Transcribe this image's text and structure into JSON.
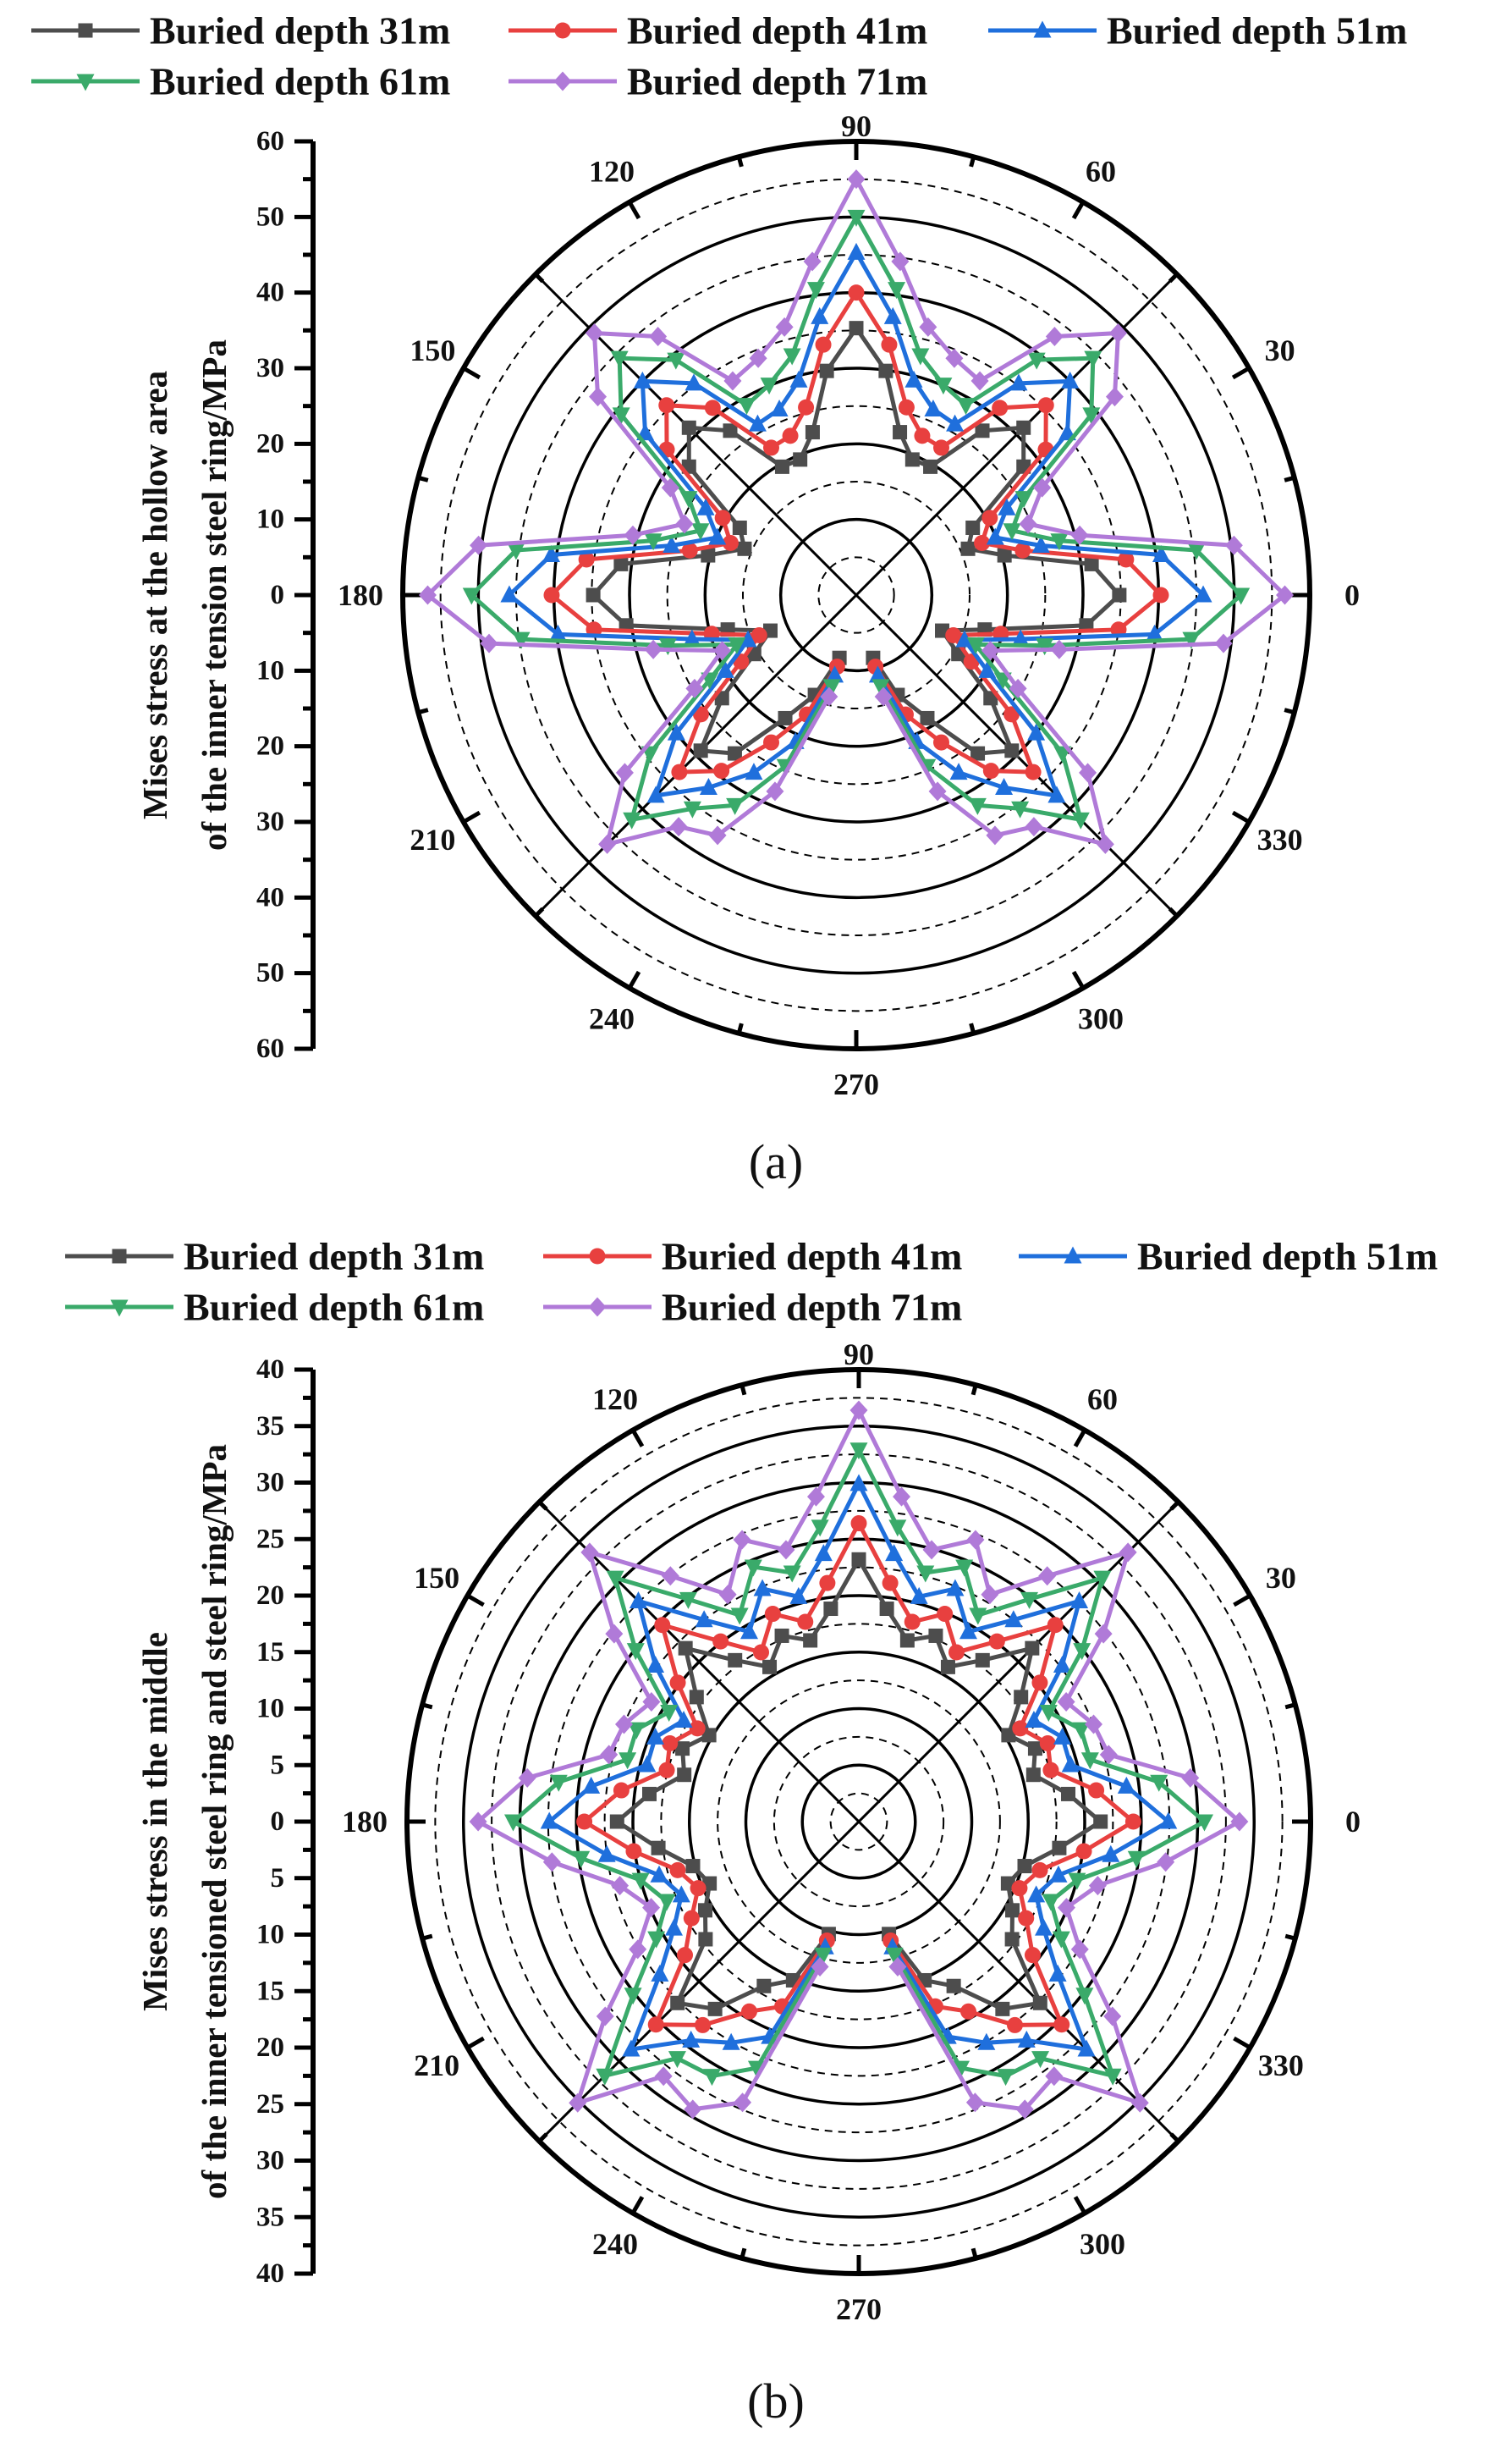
{
  "chart_data": [
    {
      "type": "polar-line",
      "panel_label": "(a)",
      "ylabel_lines": [
        "Mises stress at the hollow area",
        "of the inner tension steel ring/MPa"
      ],
      "rlim": [
        0,
        60
      ],
      "r_tick_labels": [
        "60",
        "50",
        "40",
        "30",
        "20",
        "10",
        "0",
        "10",
        "20",
        "30",
        "40",
        "50",
        "60"
      ],
      "angle_tick_labels": [
        "0",
        "30",
        "60",
        "90",
        "120",
        "150",
        "180",
        "210",
        "240",
        "270",
        "300",
        "330"
      ],
      "grid": true,
      "legend_placement": "top",
      "angles": [
        0,
        7.5,
        15,
        22.5,
        30,
        37.5,
        45,
        52.5,
        60,
        67.5,
        75,
        82.5,
        90,
        97.5,
        105,
        112.5,
        120,
        127.5,
        135,
        142.5,
        150,
        157.5,
        165,
        172.5,
        180,
        187.5,
        195,
        202.5,
        210,
        217.5,
        225,
        232.5,
        240,
        247.5,
        255,
        262.5,
        270,
        277.5,
        285,
        292.5,
        300,
        307.5,
        315,
        322.5,
        330,
        337.5,
        345,
        352.5
      ],
      "series": [
        {
          "name": "Buried depth 31m",
          "color": "#4d4d4d",
          "marker": "square",
          "values": [
            34.8,
            31.4,
            20.3,
            16.0,
            17.8,
            27.9,
            31.3,
            27.4,
            19.6,
            19.4,
            22.3,
            29.9,
            35.3,
            29.9,
            22.3,
            19.4,
            19.6,
            27.4,
            31.3,
            27.9,
            17.8,
            16.0,
            20.3,
            31.4,
            34.8,
            30.7,
            17.6,
            12.3,
            15.6,
            22.4,
            29.1,
            26.4,
            18.8,
            14.3,
            8.6,
            null,
            null,
            null,
            8.6,
            14.3,
            18.8,
            26.4,
            29.1,
            22.4,
            15.6,
            12.3,
            17.6,
            30.7
          ]
        },
        {
          "name": "Buried depth 41m",
          "color": "#e8403f",
          "marker": "circle",
          "values": [
            40.3,
            36.0,
            22.8,
            18.0,
            20.4,
            31.6,
            35.5,
            31.2,
            22.5,
            22.8,
            25.7,
            33.4,
            40.0,
            33.4,
            25.7,
            22.8,
            22.5,
            31.2,
            35.5,
            31.6,
            20.4,
            18.0,
            22.8,
            36.0,
            40.3,
            35.0,
            19.8,
            13.9,
            17.6,
            25.9,
            33.1,
            29.3,
            22.5,
            17.1,
            9.8,
            null,
            null,
            null,
            9.8,
            17.1,
            22.5,
            29.3,
            33.1,
            25.9,
            17.6,
            13.9,
            19.8,
            35.0
          ]
        },
        {
          "name": "Buried depth 51m",
          "color": "#1f6fdc",
          "marker": "triangle-up",
          "values": [
            45.9,
            40.7,
            25.3,
            19.9,
            23.0,
            35.2,
            40.0,
            35.3,
            26.1,
            26.6,
            29.4,
            37.1,
            45.3,
            37.1,
            29.4,
            26.6,
            26.1,
            35.3,
            40.0,
            35.2,
            23.0,
            19.9,
            25.3,
            40.7,
            45.9,
            39.8,
            22.5,
            15.5,
            20.0,
            30.0,
            37.5,
            32.1,
            27.1,
            21.0,
            11.0,
            null,
            null,
            null,
            11.0,
            21.0,
            27.1,
            32.1,
            37.5,
            30.0,
            20.0,
            15.5,
            22.5,
            39.8
          ]
        },
        {
          "name": "Buried depth 61m",
          "color": "#3aaa6a",
          "marker": "triangle-down",
          "values": [
            50.9,
            45.4,
            27.8,
            22.3,
            25.6,
            39.2,
            44.3,
            39.2,
            29.0,
            30.1,
            32.8,
            40.8,
            50.0,
            40.8,
            32.8,
            30.1,
            29.0,
            39.2,
            44.3,
            39.2,
            25.6,
            22.3,
            27.8,
            45.4,
            50.9,
            44.7,
            25.8,
            17.1,
            22.4,
            34.4,
            42.0,
            35.6,
            32.1,
            24.5,
            12.5,
            null,
            null,
            null,
            12.5,
            24.5,
            32.1,
            35.6,
            42.0,
            34.4,
            22.4,
            17.1,
            25.8,
            44.7
          ]
        },
        {
          "name": "Buried depth 71m",
          "color": "#b07ad8",
          "marker": "diamond",
          "values": [
            56.7,
            50.4,
            30.6,
            24.6,
            28.4,
            43.1,
            49.0,
            43.1,
            32.7,
            33.9,
            36.7,
            44.5,
            55.0,
            44.5,
            36.7,
            33.9,
            32.7,
            43.1,
            49.0,
            43.1,
            28.4,
            24.6,
            30.6,
            50.4,
            56.7,
            49.0,
            27.8,
            19.2,
            24.7,
            38.6,
            46.6,
            38.6,
            36.7,
            28.1,
            13.9,
            null,
            null,
            null,
            13.9,
            28.1,
            36.7,
            38.6,
            46.6,
            38.6,
            24.7,
            19.2,
            27.8,
            49.0
          ]
        }
      ]
    },
    {
      "type": "polar-line",
      "panel_label": "(b)",
      "ylabel_lines": [
        "Mises stress in the middle",
        "of the inner tensioned steel ring and steel ring/MPa"
      ],
      "rlim": [
        0,
        40
      ],
      "r_tick_labels": [
        "40",
        "35",
        "30",
        "25",
        "20",
        "15",
        "10",
        "5",
        "0",
        "5",
        "10",
        "15",
        "20",
        "25",
        "30",
        "35",
        "40"
      ],
      "angle_tick_labels": [
        "0",
        "30",
        "60",
        "90",
        "120",
        "150",
        "180",
        "210",
        "240",
        "270",
        "300",
        "330"
      ],
      "grid": true,
      "legend_placement": "top",
      "angles": [
        0,
        7.5,
        15,
        22.5,
        30,
        37.5,
        45,
        52.5,
        60,
        67.5,
        75,
        82.5,
        90,
        97.5,
        105,
        112.5,
        120,
        127.5,
        135,
        142.5,
        150,
        157.5,
        165,
        172.5,
        180,
        187.5,
        195,
        202.5,
        210,
        217.5,
        225,
        232.5,
        240,
        247.5,
        255,
        262.5,
        270,
        277.5,
        285,
        292.5,
        300,
        307.5,
        315,
        322.5,
        330,
        337.5,
        345,
        352.5
      ],
      "series": [
        {
          "name": "Buried depth 31m",
          "color": "#4d4d4d",
          "marker": "square",
          "values": [
            21.4,
            18.7,
            16.0,
            16.9,
            15.3,
            18.1,
            21.7,
            18.0,
            15.8,
            17.8,
            16.6,
            19.0,
            23.2,
            19.0,
            16.6,
            17.8,
            15.8,
            18.0,
            21.7,
            18.1,
            15.3,
            16.9,
            16.0,
            18.7,
            21.4,
            17.9,
            15.2,
            14.3,
            15.7,
            17.1,
            22.7,
            20.9,
            16.8,
            15.2,
            10.3,
            null,
            null,
            null,
            10.3,
            15.2,
            16.8,
            20.9,
            22.7,
            17.1,
            15.7,
            14.3,
            15.2,
            17.9
          ]
        },
        {
          "name": "Buried depth 41m",
          "color": "#e8403f",
          "marker": "circle",
          "values": [
            24.3,
            21.2,
            17.6,
            18.1,
            16.5,
            20.2,
            24.6,
            20.1,
            17.3,
            19.9,
            18.3,
            21.3,
            26.4,
            21.3,
            18.3,
            19.9,
            17.3,
            20.1,
            24.6,
            20.2,
            16.5,
            18.1,
            17.6,
            21.2,
            24.3,
            20.1,
            16.6,
            15.4,
            17.1,
            19.4,
            25.4,
            22.7,
            19.4,
            17.7,
            10.9,
            null,
            null,
            null,
            10.9,
            17.7,
            19.4,
            22.7,
            25.4,
            19.4,
            17.1,
            15.4,
            16.6,
            20.1
          ]
        },
        {
          "name": "Buried depth 51m",
          "color": "#1f6fdc",
          "marker": "triangle-up",
          "values": [
            27.4,
            23.9,
            19.4,
            19.5,
            17.9,
            22.7,
            27.6,
            22.5,
            19.4,
            22.3,
            20.6,
            23.9,
            29.9,
            23.9,
            20.6,
            22.3,
            19.4,
            22.5,
            27.6,
            22.7,
            17.9,
            19.5,
            19.4,
            23.9,
            27.4,
            22.5,
            18.3,
            17.0,
            18.9,
            22.2,
            28.5,
            24.4,
            22.6,
            20.6,
            11.5,
            null,
            null,
            null,
            11.5,
            20.6,
            22.6,
            24.4,
            28.5,
            22.2,
            18.9,
            17.0,
            18.3,
            22.5
          ]
        },
        {
          "name": "Buried depth 61m",
          "color": "#3aaa6a",
          "marker": "triangle-down",
          "values": [
            30.6,
            26.8,
            21.2,
            21.3,
            19.4,
            24.9,
            30.5,
            24.8,
            21.1,
            24.4,
            22.8,
            26.3,
            32.9,
            26.3,
            22.8,
            24.4,
            21.1,
            24.8,
            30.5,
            24.9,
            19.4,
            21.3,
            21.2,
            26.8,
            30.6,
            24.8,
            20.0,
            18.4,
            20.7,
            25.2,
            31.8,
            26.4,
            26.0,
            23.6,
            12.2,
            null,
            null,
            null,
            12.2,
            23.6,
            26.0,
            26.4,
            31.8,
            25.2,
            20.7,
            18.4,
            20.0,
            24.8
          ]
        },
        {
          "name": "Buried depth 71m",
          "color": "#b07ad8",
          "marker": "diamond",
          "values": [
            33.7,
            29.6,
            22.9,
            22.5,
            21.2,
            27.3,
            33.7,
            27.4,
            23.2,
            27.0,
            24.9,
            29.0,
            36.4,
            29.0,
            24.9,
            27.0,
            23.2,
            27.4,
            33.7,
            27.3,
            21.2,
            22.5,
            22.9,
            29.6,
            33.7,
            27.4,
            21.9,
            19.9,
            22.6,
            28.3,
            35.2,
            28.4,
            29.4,
            26.9,
            13.3,
            null,
            null,
            null,
            13.3,
            26.9,
            29.4,
            28.4,
            35.2,
            28.3,
            22.6,
            19.9,
            21.9,
            27.4
          ]
        }
      ]
    }
  ]
}
